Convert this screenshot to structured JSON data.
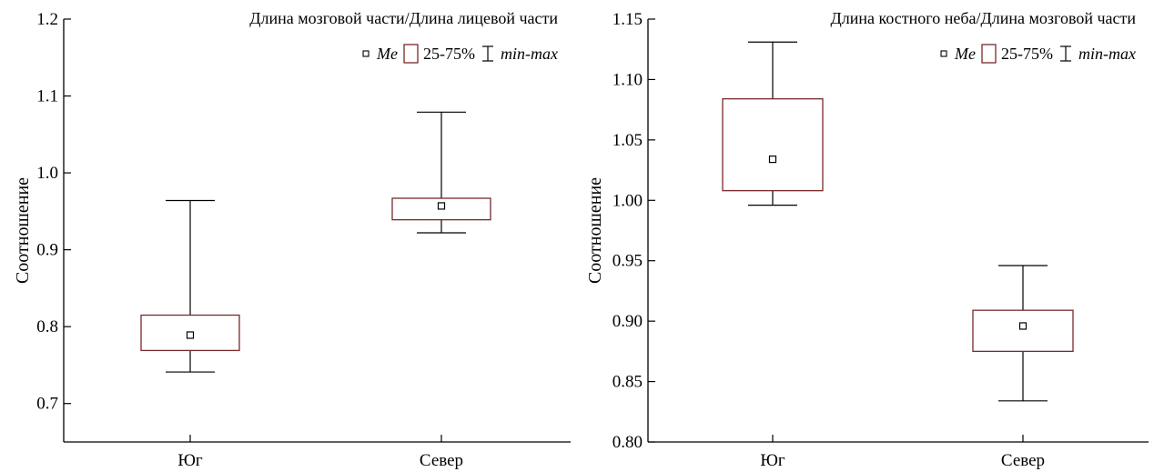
{
  "colors": {
    "box_stroke": "#7a2a2a",
    "line": "#000000",
    "background": "#ffffff"
  },
  "legend": {
    "median_label": "Me",
    "box_label": "25-75%",
    "range_label": "min-max"
  },
  "chart_data": [
    {
      "type": "boxplot",
      "title": "Длина мозговой части/Длина лицевой части",
      "ylabel": "Соотношение",
      "xlabel": "",
      "ylim": [
        0.65,
        1.2
      ],
      "yticks": [
        0.7,
        0.8,
        0.9,
        1.0,
        1.1,
        1.2
      ],
      "ytick_labels": [
        "0.7",
        "0.8",
        "0.9",
        "1.0",
        "1.1",
        "1.2"
      ],
      "categories": [
        "Юг",
        "Север"
      ],
      "boxes": [
        {
          "category": "Юг",
          "min": 0.741,
          "q1": 0.769,
          "median": 0.789,
          "q3": 0.815,
          "max": 0.964
        },
        {
          "category": "Север",
          "min": 0.922,
          "q1": 0.939,
          "median": 0.957,
          "q3": 0.967,
          "max": 1.079
        }
      ],
      "legend_position": "top-right",
      "grid": false
    },
    {
      "type": "boxplot",
      "title": "Длина костного неба/Длина мозговой части",
      "ylabel": "Соотношение",
      "xlabel": "",
      "ylim": [
        0.8,
        1.15
      ],
      "yticks": [
        0.8,
        0.85,
        0.9,
        0.95,
        1.0,
        1.05,
        1.1,
        1.15
      ],
      "ytick_labels": [
        "0.80",
        "0.85",
        "0.90",
        "0.95",
        "1.00",
        "1.05",
        "1.10",
        "1.15"
      ],
      "categories": [
        "Юг",
        "Север"
      ],
      "boxes": [
        {
          "category": "Юг",
          "min": 0.996,
          "q1": 1.008,
          "median": 1.034,
          "q3": 1.084,
          "max": 1.131
        },
        {
          "category": "Север",
          "min": 0.834,
          "q1": 0.875,
          "median": 0.896,
          "q3": 0.909,
          "max": 0.946
        }
      ],
      "legend_position": "top-right",
      "grid": false
    }
  ]
}
